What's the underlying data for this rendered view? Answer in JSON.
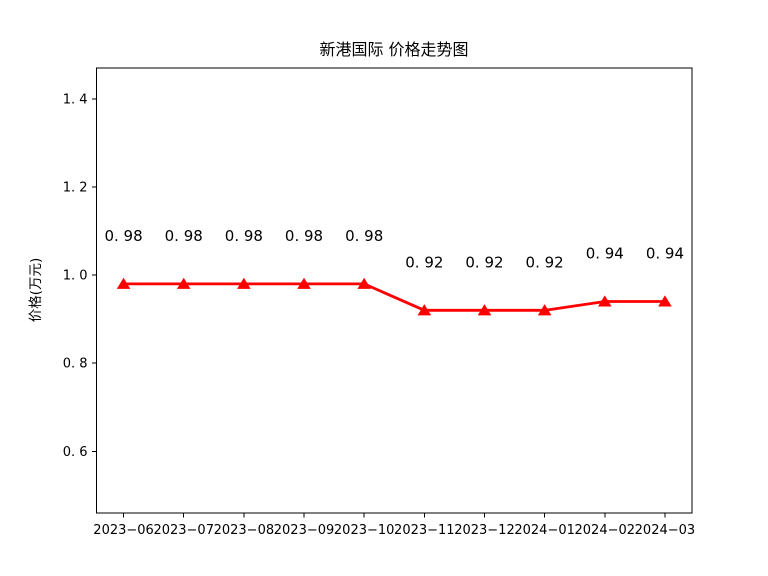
{
  "page": {
    "background_color": "#ffffff",
    "text_color": "#000000"
  },
  "chart_data": {
    "type": "line",
    "title": "新港国际 价格走势图",
    "xlabel": "",
    "ylabel": "价格(万元)",
    "x": [
      "2023-06",
      "2023-07",
      "2023-08",
      "2023-09",
      "2023-10",
      "2023-11",
      "2023-12",
      "2024-01",
      "2024-02",
      "2024-03"
    ],
    "series": [
      {
        "name": "价格",
        "values": [
          0.98,
          0.98,
          0.98,
          0.98,
          0.98,
          0.92,
          0.92,
          0.92,
          0.94,
          0.94
        ],
        "point_labels": [
          "0.98",
          "0.98",
          "0.98",
          "0.98",
          "0.98",
          "0.92",
          "0.92",
          "0.92",
          "0.94",
          "0.94"
        ],
        "color": "#ff0000",
        "marker": "triangle-up"
      }
    ],
    "yticks": [
      0.6,
      0.8,
      1.0,
      1.2,
      1.4
    ],
    "ylim": [
      0.46,
      1.47
    ],
    "grid": false,
    "legend_position": "none",
    "axis_color": "#000000"
  }
}
